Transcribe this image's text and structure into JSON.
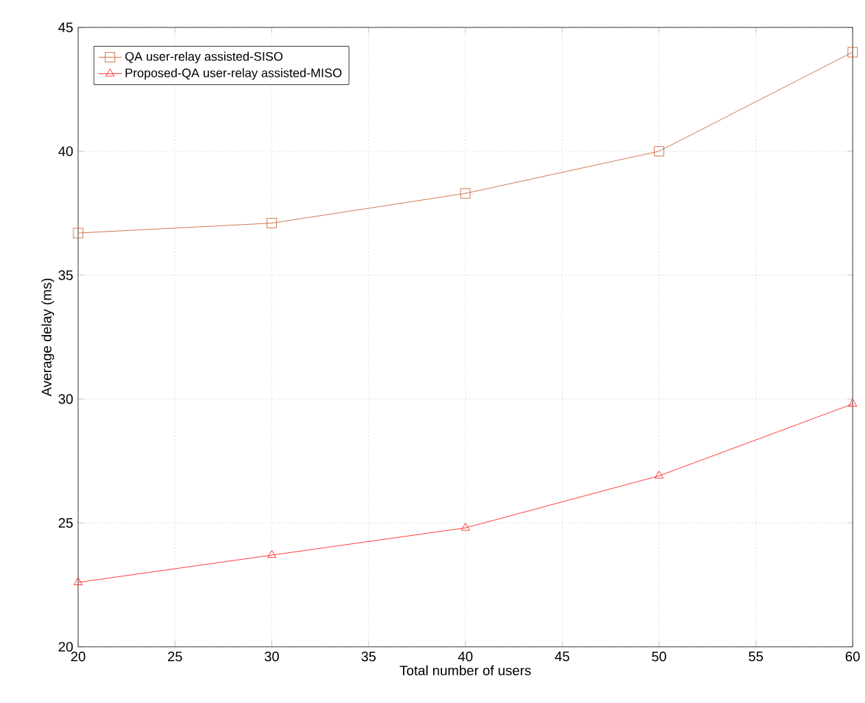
{
  "chart_data": {
    "type": "line",
    "xlabel": "Total number of users",
    "ylabel": "Average delay (ms)",
    "x": [
      20,
      30,
      40,
      50,
      60
    ],
    "series": [
      {
        "name": "QA user-relay assisted-SISO",
        "color": "#c0501f",
        "marker": "square",
        "values": [
          36.7,
          37.1,
          38.3,
          40.0,
          44.0
        ]
      },
      {
        "name": "Proposed-QA user-relay assisted-MISO",
        "color": "#ff0000",
        "marker": "triangle",
        "values": [
          22.6,
          23.7,
          24.8,
          26.9,
          29.8
        ]
      }
    ],
    "xlim": [
      20,
      60
    ],
    "ylim": [
      20,
      45
    ],
    "xticks": [
      20,
      25,
      30,
      35,
      40,
      45,
      50,
      55,
      60
    ],
    "yticks": [
      20,
      25,
      30,
      35,
      40,
      45
    ],
    "grid": true,
    "legend": "top left",
    "line_style": "solid"
  }
}
